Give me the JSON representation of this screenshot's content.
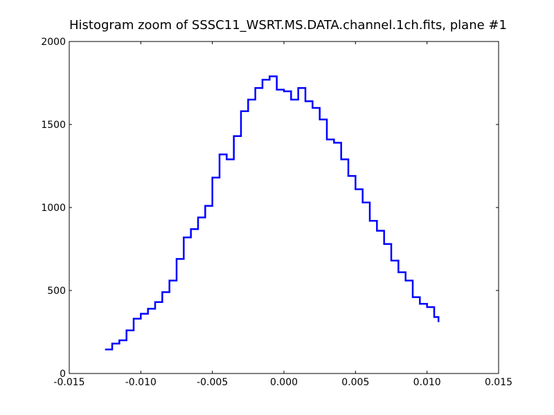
{
  "chart_data": {
    "type": "line",
    "drawstyle": "steps",
    "title": "Histogram zoom of SSSC11_WSRT.MS.DATA.channel.1ch.fits, plane #1",
    "xlabel": "",
    "ylabel": "",
    "xlim": [
      -0.015,
      0.015
    ],
    "ylim": [
      0,
      2000
    ],
    "x_ticks": [
      -0.015,
      -0.01,
      -0.005,
      0.0,
      0.005,
      0.01,
      0.015
    ],
    "x_tick_labels": [
      "-0.015",
      "-0.010",
      "-0.005",
      "0.000",
      "0.005",
      "0.010",
      "0.015"
    ],
    "y_ticks": [
      0,
      500,
      1000,
      1500,
      2000
    ],
    "y_tick_labels": [
      "0",
      "500",
      "1000",
      "1500",
      "2000"
    ],
    "grid": false,
    "legend": "none",
    "series": [
      {
        "color": "#0000ff",
        "x": [
          -0.0125,
          -0.012,
          -0.0115,
          -0.011,
          -0.0105,
          -0.01,
          -0.0095,
          -0.009,
          -0.0085,
          -0.008,
          -0.0075,
          -0.007,
          -0.0065,
          -0.006,
          -0.0055,
          -0.005,
          -0.0045,
          -0.004,
          -0.0035,
          -0.003,
          -0.0025,
          -0.002,
          -0.0015,
          -0.001,
          -0.0005,
          0.0,
          0.0005,
          0.001,
          0.0015,
          0.002,
          0.0025,
          0.003,
          0.0035,
          0.004,
          0.0045,
          0.005,
          0.0055,
          0.006,
          0.0065,
          0.007,
          0.0075,
          0.008,
          0.0085,
          0.009,
          0.0095,
          0.01,
          0.0105,
          0.0108
        ],
        "y": [
          145,
          180,
          200,
          260,
          330,
          360,
          390,
          430,
          490,
          560,
          690,
          820,
          870,
          940,
          1010,
          1180,
          1320,
          1290,
          1430,
          1580,
          1650,
          1720,
          1770,
          1790,
          1710,
          1700,
          1650,
          1720,
          1640,
          1600,
          1530,
          1410,
          1390,
          1290,
          1190,
          1110,
          1030,
          920,
          860,
          780,
          680,
          610,
          560,
          460,
          420,
          400,
          340,
          310
        ]
      }
    ]
  }
}
